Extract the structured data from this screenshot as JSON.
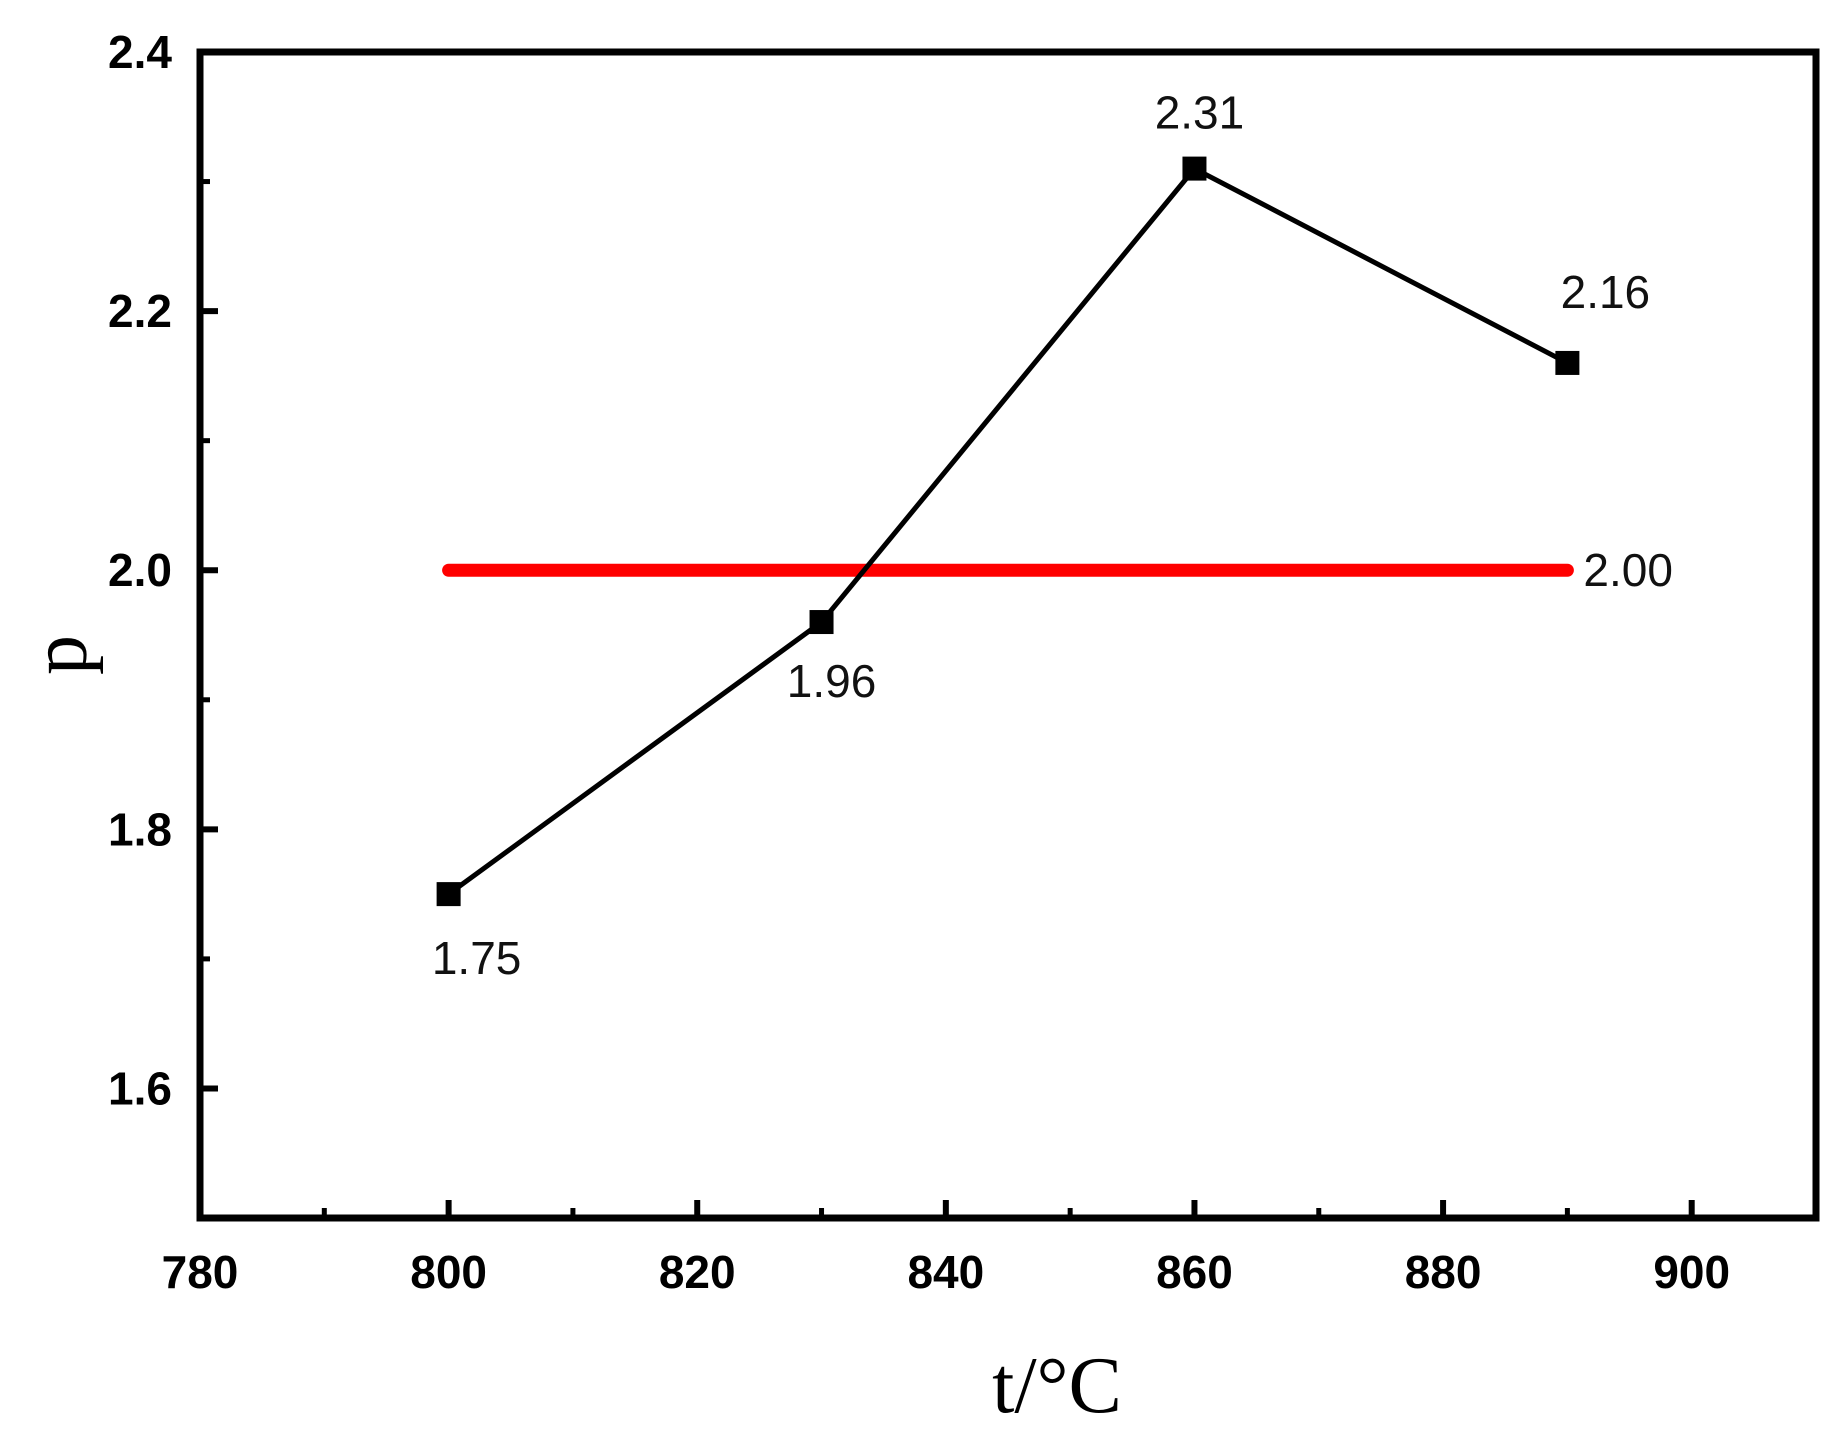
{
  "chart_data": {
    "type": "line",
    "xlabel": "t/°C",
    "ylabel": "p",
    "xlim": [
      780,
      910
    ],
    "ylim": [
      1.5,
      2.4
    ],
    "x_ticks": [
      "780",
      "800",
      "820",
      "840",
      "860",
      "880",
      "900"
    ],
    "y_ticks": [
      "1.6",
      "1.8",
      "2.0",
      "2.2",
      "2.4"
    ],
    "grid": false,
    "series": [
      {
        "marker": "square",
        "color": "#000000",
        "x": [
          800,
          830,
          860,
          890
        ],
        "y": [
          1.75,
          1.96,
          2.31,
          2.16
        ],
        "labels": [
          "1.75",
          "1.96",
          "2.31",
          "2.16"
        ]
      }
    ],
    "reference_line": {
      "y": 2.0,
      "x_range": [
        800,
        890
      ],
      "color": "#ff0000",
      "label": "2.00"
    }
  }
}
